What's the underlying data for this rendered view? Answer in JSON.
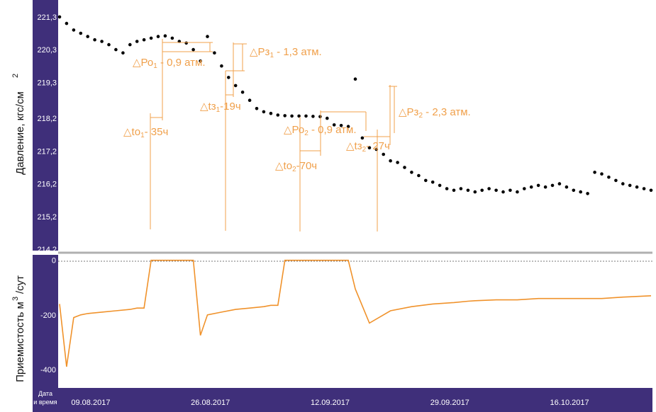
{
  "colors": {
    "axis_band": "#3f2f7a",
    "pressure_series": "#000000",
    "injectivity_series": "#f0922b",
    "annotation": "#f0a04b",
    "separator": "#b0b0b0"
  },
  "chart_data": [
    {
      "type": "scatter",
      "ylabel": "Давление, кгс/см",
      "ylabel_superscript": "2",
      "ylim": [
        214.2,
        221.6
      ],
      "ytick_labels": [
        "221,3",
        "220,3",
        "219,3",
        "218,2",
        "217,2",
        "216,2",
        "215,2",
        "214,2"
      ],
      "ytick_values": [
        221.3,
        220.3,
        219.3,
        218.2,
        217.2,
        216.2,
        215.2,
        214.2
      ],
      "xlim": [
        "2017-08-08",
        "2017-10-31"
      ],
      "grid": false,
      "series": [
        {
          "x": [
            "2017-08-08",
            "2017-08-09",
            "2017-08-10",
            "2017-08-11",
            "2017-08-12",
            "2017-08-13",
            "2017-08-14",
            "2017-08-15",
            "2017-08-16",
            "2017-08-17",
            "2017-08-18",
            "2017-08-19",
            "2017-08-20",
            "2017-08-21",
            "2017-08-22",
            "2017-08-23",
            "2017-08-24",
            "2017-08-25",
            "2017-08-26",
            "2017-08-27",
            "2017-08-28",
            "2017-08-29",
            "2017-08-30",
            "2017-08-31",
            "2017-09-01",
            "2017-09-02",
            "2017-09-03",
            "2017-09-04",
            "2017-09-05",
            "2017-09-06",
            "2017-09-07",
            "2017-09-08",
            "2017-09-09",
            "2017-09-10",
            "2017-09-11",
            "2017-09-12",
            "2017-09-13",
            "2017-09-14",
            "2017-09-15",
            "2017-09-16",
            "2017-09-17",
            "2017-09-18",
            "2017-09-19",
            "2017-09-20",
            "2017-09-21",
            "2017-09-22",
            "2017-09-23",
            "2017-09-24",
            "2017-09-25",
            "2017-09-26",
            "2017-09-27",
            "2017-09-28",
            "2017-09-29",
            "2017-09-30",
            "2017-10-01",
            "2017-10-02",
            "2017-10-03",
            "2017-10-04",
            "2017-10-05",
            "2017-10-06",
            "2017-10-07",
            "2017-10-08",
            "2017-10-09",
            "2017-10-10",
            "2017-10-11",
            "2017-10-12",
            "2017-10-13",
            "2017-10-14",
            "2017-10-15",
            "2017-10-16",
            "2017-10-17",
            "2017-10-18",
            "2017-10-19",
            "2017-10-20",
            "2017-10-21",
            "2017-10-22",
            "2017-10-23",
            "2017-10-24",
            "2017-10-25",
            "2017-10-26",
            "2017-10-27",
            "2017-10-28",
            "2017-10-29",
            "2017-10-30",
            "2017-10-31"
          ],
          "y": [
            221.3,
            221.1,
            220.9,
            220.8,
            220.7,
            220.6,
            220.55,
            220.45,
            220.3,
            220.2,
            220.45,
            220.55,
            220.6,
            220.65,
            220.7,
            220.72,
            220.65,
            220.55,
            220.5,
            220.3,
            219.95,
            220.7,
            220.2,
            219.8,
            219.45,
            219.2,
            219.0,
            218.75,
            218.5,
            218.4,
            218.35,
            218.3,
            218.28,
            218.27,
            218.27,
            218.27,
            218.26,
            218.25,
            218.2,
            218.0,
            217.98,
            217.95,
            219.4,
            217.6,
            217.3,
            217.25,
            217.1,
            216.9,
            216.85,
            216.7,
            216.55,
            216.45,
            216.3,
            216.25,
            216.15,
            216.05,
            216.0,
            216.05,
            216.0,
            215.95,
            216.0,
            216.05,
            216.0,
            215.95,
            216.0,
            215.95,
            216.05,
            216.1,
            216.15,
            216.1,
            216.15,
            216.2,
            216.1,
            216.0,
            215.95,
            215.9,
            216.55,
            216.5,
            216.4,
            216.3,
            216.2,
            216.15,
            216.1,
            216.05,
            216.0
          ]
        }
      ]
    },
    {
      "type": "line",
      "ylabel": "Приемистость м",
      "ylabel_superscript": "3",
      "ylabel_suffix": "/сут",
      "ylim": [
        -460,
        20
      ],
      "ytick_labels": [
        "0",
        "-200",
        "-400"
      ],
      "ytick_values": [
        0,
        -200,
        -400
      ],
      "reference_line": 0,
      "xlabel_lines": [
        "Дата",
        "и время"
      ],
      "xtick_labels": [
        "09.08.2017",
        "26.08.2017",
        "12.09.2017",
        "29.09.2017",
        "16.10.2017"
      ],
      "xtick_values": [
        "2017-08-09",
        "2017-08-26",
        "2017-09-12",
        "2017-09-29",
        "2017-10-16"
      ],
      "xlim": [
        "2017-08-08",
        "2017-10-31"
      ],
      "series": [
        {
          "x": [
            "2017-08-08",
            "2017-08-09",
            "2017-08-10",
            "2017-08-11",
            "2017-08-12",
            "2017-08-14",
            "2017-08-16",
            "2017-08-18",
            "2017-08-19",
            "2017-08-20",
            "2017-08-21",
            "2017-08-22",
            "2017-08-23",
            "2017-08-24",
            "2017-08-25",
            "2017-08-26",
            "2017-08-27",
            "2017-08-28",
            "2017-08-29",
            "2017-08-31",
            "2017-09-02",
            "2017-09-04",
            "2017-09-06",
            "2017-09-07",
            "2017-09-08",
            "2017-09-09",
            "2017-09-10",
            "2017-09-11",
            "2017-09-12",
            "2017-09-14",
            "2017-09-16",
            "2017-09-17",
            "2017-09-18",
            "2017-09-19",
            "2017-09-21",
            "2017-09-24",
            "2017-09-27",
            "2017-09-30",
            "2017-10-03",
            "2017-10-05",
            "2017-10-06",
            "2017-10-09",
            "2017-10-12",
            "2017-10-15",
            "2017-10-18",
            "2017-10-20",
            "2017-10-21",
            "2017-10-24",
            "2017-10-27",
            "2017-10-31"
          ],
          "y": [
            -160,
            -390,
            -210,
            -200,
            -195,
            -190,
            -185,
            -180,
            -175,
            -175,
            0,
            0,
            0,
            0,
            0,
            0,
            0,
            -275,
            -200,
            -190,
            -180,
            -175,
            -170,
            -165,
            -165,
            0,
            0,
            0,
            0,
            0,
            0,
            0,
            0,
            -105,
            -230,
            -185,
            -170,
            -160,
            -155,
            -150,
            -148,
            -145,
            -145,
            -140,
            -140,
            -140,
            -140,
            -140,
            -135,
            -130
          ]
        }
      ]
    }
  ],
  "annotations": [
    {
      "symbol": "△",
      "main": "Ро",
      "sub": "1",
      "rest": " - 0,9 атм."
    },
    {
      "symbol": "△",
      "main": "Рз",
      "sub": "1",
      "rest": " - 1,3 атм."
    },
    {
      "symbol": "△",
      "main": "t",
      "main_prefix": "",
      "sub": "",
      "rest": ""
    },
    {
      "symbol": "△",
      "main": "tз",
      "sub": "1",
      "rest": "-19ч"
    },
    {
      "symbol": "△",
      "main": "tо",
      "sub": "1",
      "rest": "- 35ч"
    },
    {
      "symbol": "△",
      "main": "Ро",
      "sub": "2",
      "rest": " - 0,9 атм."
    },
    {
      "symbol": "△",
      "main": "Рз",
      "sub": "2",
      "rest": " - 2,3 атм."
    },
    {
      "symbol": "△",
      "main": "tз",
      "sub": "2",
      "rest": "- 27ч"
    },
    {
      "symbol": "△",
      "main": "tо",
      "sub": "2",
      "rest": "-70ч"
    }
  ]
}
